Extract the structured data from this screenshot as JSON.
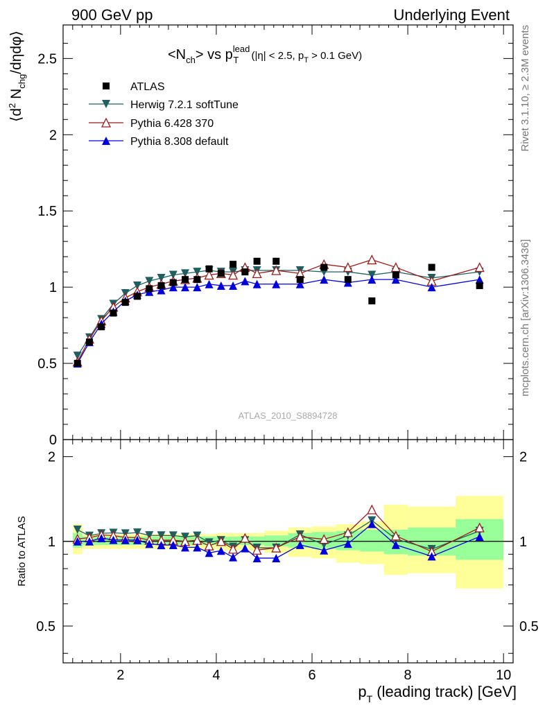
{
  "header": {
    "left": "900 GeV pp",
    "right": "Underlying Event"
  },
  "side": {
    "rivet": "Rivet 3.1.10, ≥ 2.3M events",
    "mcplots": "mcplots.cern.ch [arXiv:1306.3436]"
  },
  "chart_data": {
    "type": "scatter",
    "title_parts": {
      "a": "<N",
      "a_sub": "ch",
      "b": "> vs p",
      "b_sup": "lead",
      "b_sub": "T",
      "c": " (|η| < 2.5, p",
      "c_sub": "T",
      "d": " > 0.1 GeV)"
    },
    "ylabel_parts": {
      "a": "⟨d",
      "a_sup": "2",
      "b": " N",
      "b_sub": "chg",
      "c": "/dηdφ⟩"
    },
    "xlabel_parts": {
      "a": "p",
      "a_sub": "T",
      "b": " (leading track) [GeV]"
    },
    "ratio_ylabel": "Ratio to ATLAS",
    "watermark": "ATLAS_2010_S8894728",
    "xlim": [
      0.8,
      10.2
    ],
    "ylim": [
      0,
      2.72
    ],
    "ratio_ylim": [
      0.37,
      2.3
    ],
    "x_ticks": [
      2,
      4,
      6,
      8,
      10
    ],
    "y_ticks": [
      {
        "v": 0,
        "label": "0"
      },
      {
        "v": 0.5,
        "label": "0.5"
      },
      {
        "v": 1,
        "label": "1"
      },
      {
        "v": 1.5,
        "label": "1.5"
      },
      {
        "v": 2,
        "label": "2"
      },
      {
        "v": 2.5,
        "label": "2.5"
      }
    ],
    "ratio_ticks": [
      {
        "v": 0.5,
        "label": "0.5"
      },
      {
        "v": 1,
        "label": "1"
      },
      {
        "v": 2,
        "label": "2"
      }
    ],
    "x": [
      1.1,
      1.35,
      1.6,
      1.85,
      2.1,
      2.35,
      2.6,
      2.85,
      3.1,
      3.35,
      3.6,
      3.85,
      4.1,
      4.35,
      4.6,
      4.85,
      5.25,
      5.75,
      6.25,
      6.75,
      7.25,
      7.75,
      8.5,
      9.5
    ],
    "atlas": [
      0.5,
      0.64,
      0.74,
      0.83,
      0.9,
      0.94,
      0.99,
      1.01,
      1.03,
      1.05,
      1.05,
      1.12,
      1.09,
      1.15,
      1.1,
      1.17,
      1.17,
      1.05,
      1.13,
      1.05,
      0.91,
      1.08,
      1.13,
      1.01
    ],
    "series": [
      {
        "name": "Herwig 7.2.1 softTune",
        "color": "#1f5f5f",
        "marker": "tri-down-filled",
        "values": [
          0.55,
          0.67,
          0.79,
          0.89,
          0.96,
          1.01,
          1.04,
          1.06,
          1.08,
          1.09,
          1.1,
          1.11,
          1.1,
          1.1,
          1.11,
          1.11,
          1.11,
          1.11,
          1.1,
          1.1,
          1.08,
          1.1,
          1.06,
          1.1
        ]
      },
      {
        "name": "Pythia 6.428 370",
        "color": "#9b1b1b",
        "marker": "tri-up-open",
        "values": [
          0.51,
          0.66,
          0.78,
          0.87,
          0.93,
          0.97,
          1.0,
          1.02,
          1.04,
          1.05,
          1.06,
          1.08,
          1.09,
          1.08,
          1.13,
          1.09,
          1.11,
          1.09,
          1.15,
          1.13,
          1.18,
          1.13,
          1.04,
          1.13
        ]
      },
      {
        "name": "Pythia 8.308 default",
        "color": "#0000dd",
        "marker": "tri-up-filled",
        "values": [
          0.5,
          0.64,
          0.76,
          0.84,
          0.91,
          0.95,
          0.97,
          0.98,
          1.0,
          1.0,
          1.0,
          1.02,
          1.01,
          1.01,
          1.04,
          1.02,
          1.02,
          1.02,
          1.05,
          1.03,
          1.05,
          1.05,
          1.0,
          1.05
        ]
      }
    ],
    "legend": [
      "ATLAS",
      "Herwig 7.2.1 softTune",
      "Pythia 6.428 370",
      "Pythia 8.308 default"
    ],
    "band_green": [
      {
        "x0": 1.0,
        "x1": 1.2,
        "lo": 0.95,
        "hi": 1.07
      },
      {
        "x0": 1.2,
        "x1": 4.0,
        "lo": 0.97,
        "hi": 1.04
      },
      {
        "x0": 4.0,
        "x1": 5.0,
        "lo": 0.97,
        "hi": 1.04
      },
      {
        "x0": 5.0,
        "x1": 5.5,
        "lo": 0.96,
        "hi": 1.05
      },
      {
        "x0": 5.5,
        "x1": 6.0,
        "lo": 0.95,
        "hi": 1.07
      },
      {
        "x0": 6.0,
        "x1": 6.5,
        "lo": 0.94,
        "hi": 1.08
      },
      {
        "x0": 6.5,
        "x1": 7.0,
        "lo": 0.93,
        "hi": 1.09
      },
      {
        "x0": 7.0,
        "x1": 7.5,
        "lo": 0.92,
        "hi": 1.1
      },
      {
        "x0": 7.5,
        "x1": 8.0,
        "lo": 0.9,
        "hi": 1.1
      },
      {
        "x0": 8.0,
        "x1": 9.0,
        "lo": 0.89,
        "hi": 1.12
      },
      {
        "x0": 9.0,
        "x1": 10.0,
        "lo": 0.86,
        "hi": 1.2
      }
    ],
    "band_yellow": [
      {
        "x0": 1.0,
        "x1": 1.2,
        "lo": 0.9,
        "hi": 1.15
      },
      {
        "x0": 1.2,
        "x1": 4.0,
        "lo": 0.94,
        "hi": 1.06
      },
      {
        "x0": 4.0,
        "x1": 5.0,
        "lo": 0.93,
        "hi": 1.07
      },
      {
        "x0": 5.0,
        "x1": 5.5,
        "lo": 0.91,
        "hi": 1.09
      },
      {
        "x0": 5.5,
        "x1": 6.0,
        "lo": 0.88,
        "hi": 1.12
      },
      {
        "x0": 6.0,
        "x1": 6.5,
        "lo": 0.87,
        "hi": 1.13
      },
      {
        "x0": 6.5,
        "x1": 7.0,
        "lo": 0.84,
        "hi": 1.15
      },
      {
        "x0": 7.0,
        "x1": 7.5,
        "lo": 0.83,
        "hi": 1.18
      },
      {
        "x0": 7.5,
        "x1": 8.0,
        "lo": 0.76,
        "hi": 1.35
      },
      {
        "x0": 8.0,
        "x1": 9.0,
        "lo": 0.77,
        "hi": 1.33
      },
      {
        "x0": 9.0,
        "x1": 10.0,
        "lo": 0.68,
        "hi": 1.45
      }
    ]
  }
}
